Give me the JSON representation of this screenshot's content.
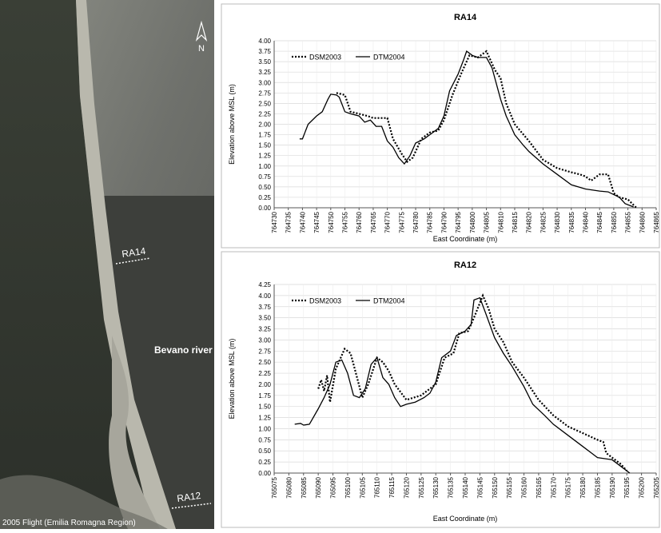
{
  "image": {
    "north": "N",
    "label_ra14": "RA14",
    "label_ra12": "RA12",
    "river": "Bevano river",
    "credit": "2005 Flight (Emilia Romagna Region)"
  },
  "chart_data": [
    {
      "type": "line",
      "title": "RA14",
      "x_label": "East Coordinate (m)",
      "y_label": "Elevation above MSL (m)",
      "legend": "upper left",
      "grid": true,
      "xlim": [
        764730,
        764865
      ],
      "xticks": [
        764730,
        764735,
        764740,
        764745,
        764750,
        764755,
        764760,
        764765,
        764770,
        764775,
        764780,
        764785,
        764790,
        764795,
        764800,
        764805,
        764810,
        764815,
        764820,
        764825,
        764830,
        764835,
        764840,
        764845,
        764850,
        764855,
        764860,
        764865
      ],
      "ylim": [
        0,
        4
      ],
      "yticks": [
        {
          "value": 0,
          "label": "0.00"
        },
        0.25,
        {
          "value": 0.5,
          "label": "0.50"
        },
        0.75,
        {
          "value": 1,
          "label": "1.00"
        },
        1.25,
        {
          "value": 1.5,
          "label": "1.50"
        },
        1.75,
        {
          "value": 2,
          "label": "2.00"
        },
        2.25,
        {
          "value": 2.5,
          "label": "2.50"
        },
        2.75,
        {
          "value": 3,
          "label": "3.00"
        },
        3.25,
        {
          "value": 3.5,
          "label": "3.50"
        },
        3.75,
        {
          "value": 4,
          "label": "4.00"
        }
      ],
      "series": [
        {
          "name": "DSM2003",
          "color": "#000000",
          "dash": "dotted",
          "x": [
            764752,
            764755,
            764757,
            764760,
            764763,
            764765,
            764767,
            764770,
            764772,
            764775,
            764777,
            764779,
            764782,
            764785,
            764788,
            764790,
            764793,
            764796,
            764799,
            764802,
            764805,
            764808,
            764810,
            764812,
            764815,
            764820,
            764825,
            764830,
            764835,
            764838,
            764840,
            764842,
            764845,
            764848,
            764850,
            764852,
            764855,
            764858
          ],
          "values": [
            2.75,
            2.7,
            2.3,
            2.25,
            2.2,
            2.15,
            2.15,
            2.15,
            1.65,
            1.3,
            1.1,
            1.2,
            1.65,
            1.8,
            1.85,
            2.1,
            2.7,
            3.2,
            3.65,
            3.6,
            3.75,
            3.3,
            3.1,
            2.5,
            2.0,
            1.6,
            1.15,
            0.95,
            0.85,
            0.8,
            0.75,
            0.65,
            0.8,
            0.8,
            0.35,
            0.25,
            0.2,
            0
          ]
        },
        {
          "name": "DTM2004",
          "color": "#000000",
          "dash": "solid",
          "x": [
            764739,
            764740,
            764742,
            764745,
            764747,
            764749,
            764750,
            764752,
            764753,
            764755,
            764757,
            764760,
            764762,
            764764,
            764766,
            764768,
            764770,
            764772,
            764774,
            764776,
            764778,
            764780,
            764783,
            764785,
            764788,
            764790,
            764792,
            764795,
            764797,
            764798,
            764800,
            764802,
            764805,
            764807,
            764810,
            764812,
            764815,
            764818,
            764820,
            764825,
            764830,
            764835,
            764840,
            764845,
            764848,
            764852,
            764854,
            764857
          ],
          "values": [
            1.65,
            1.65,
            2.0,
            2.2,
            2.3,
            2.6,
            2.72,
            2.7,
            2.65,
            2.3,
            2.25,
            2.2,
            2.05,
            2.1,
            1.95,
            1.95,
            1.6,
            1.45,
            1.2,
            1.05,
            1.25,
            1.55,
            1.65,
            1.75,
            1.9,
            2.2,
            2.8,
            3.2,
            3.55,
            3.75,
            3.65,
            3.6,
            3.6,
            3.35,
            2.6,
            2.2,
            1.75,
            1.5,
            1.35,
            1.05,
            0.8,
            0.55,
            0.45,
            0.4,
            0.38,
            0.25,
            0.1,
            0.02
          ]
        }
      ]
    },
    {
      "type": "line",
      "title": "RA12",
      "x_label": "East Coordinate (m)",
      "y_label": "Elevation above MSL (m)",
      "legend": "upper left",
      "grid": true,
      "xlim": [
        765075,
        765205
      ],
      "xticks": [
        765075,
        765080,
        765085,
        765090,
        765095,
        765100,
        765105,
        765110,
        765115,
        765120,
        765125,
        765130,
        765135,
        765140,
        765145,
        765150,
        765155,
        765160,
        765165,
        765170,
        765175,
        765180,
        765185,
        765190,
        765195,
        765200,
        765205
      ],
      "ylim": [
        0,
        4.25
      ],
      "yticks": [
        {
          "value": 0,
          "label": "0.00"
        },
        0.25,
        {
          "value": 0.5,
          "label": "0.50"
        },
        0.75,
        {
          "value": 1,
          "label": "1.00"
        },
        1.25,
        {
          "value": 1.5,
          "label": "1.50"
        },
        1.75,
        {
          "value": 2,
          "label": "2.00"
        },
        2.25,
        {
          "value": 2.5,
          "label": "2.50"
        },
        2.75,
        {
          "value": 3,
          "label": "3.00"
        },
        3.25,
        {
          "value": 3.5,
          "label": "3.50"
        },
        3.75,
        {
          "value": 4,
          "label": "4.00"
        },
        4.25
      ],
      "series": [
        {
          "name": "DSM2003",
          "color": "#000000",
          "dash": "dotted",
          "x": [
            765090,
            765091,
            765092,
            765093,
            765094,
            765096,
            765099,
            765101,
            765103,
            765105,
            765107,
            765110,
            765112,
            765114,
            765116,
            765120,
            765125,
            765130,
            765133,
            765136,
            765138,
            765141,
            765143,
            765146,
            765148,
            765150,
            765153,
            765156,
            765160,
            765165,
            765170,
            765175,
            765180,
            765185,
            765187,
            765188,
            765190,
            765193,
            765195
          ],
          "values": [
            1.9,
            2.1,
            1.85,
            2.2,
            1.6,
            2.35,
            2.8,
            2.7,
            2.2,
            1.7,
            2.0,
            2.6,
            2.5,
            2.3,
            2.0,
            1.65,
            1.75,
            2.0,
            2.6,
            2.7,
            3.15,
            3.2,
            3.5,
            4.0,
            3.7,
            3.25,
            2.95,
            2.5,
            2.15,
            1.65,
            1.3,
            1.05,
            0.9,
            0.75,
            0.7,
            0.45,
            0.35,
            0.2,
            0.05
          ]
        },
        {
          "name": "DTM2004",
          "color": "#000000",
          "dash": "solid",
          "x": [
            765082,
            765084,
            765085,
            765087,
            765090,
            765092,
            765094,
            765096,
            765098,
            765100,
            765102,
            765104,
            765106,
            765108,
            765110,
            765112,
            765114,
            765116,
            765118,
            765120,
            765123,
            765126,
            765128,
            765130,
            765132,
            765135,
            765137,
            765140,
            765142,
            765143,
            765145,
            765147,
            765150,
            765153,
            765156,
            765160,
            765163,
            765167,
            765170,
            765175,
            765180,
            765183,
            765185,
            765190,
            765193,
            765196
          ],
          "values": [
            1.1,
            1.12,
            1.08,
            1.1,
            1.45,
            1.7,
            2.0,
            2.5,
            2.55,
            2.25,
            1.75,
            1.7,
            1.9,
            2.45,
            2.6,
            2.15,
            2.0,
            1.7,
            1.5,
            1.55,
            1.6,
            1.7,
            1.8,
            2.05,
            2.6,
            2.75,
            3.1,
            3.2,
            3.35,
            3.9,
            3.95,
            3.6,
            3.05,
            2.7,
            2.4,
            1.95,
            1.55,
            1.3,
            1.1,
            0.85,
            0.6,
            0.45,
            0.35,
            0.3,
            0.15,
            0
          ]
        }
      ]
    }
  ]
}
